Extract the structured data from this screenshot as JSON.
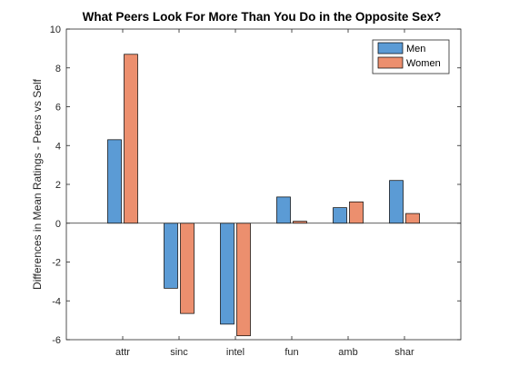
{
  "chart_data": {
    "type": "bar",
    "title": "What Peers Look For More Than You Do in the Opposite Sex?",
    "xlabel": "",
    "ylabel": "Differences in Mean Ratings - Peers vs Self",
    "categories": [
      "attr",
      "sinc",
      "intel",
      "fun",
      "amb",
      "shar"
    ],
    "series": [
      {
        "name": "Men",
        "color": "#5b9bd5",
        "values": [
          4.3,
          -3.35,
          -5.2,
          1.35,
          0.8,
          2.2
        ]
      },
      {
        "name": "Women",
        "color": "#ec8f6e",
        "values": [
          8.7,
          -4.65,
          -5.8,
          0.1,
          1.1,
          0.5
        ]
      }
    ],
    "ylim": [
      -6,
      10
    ],
    "yticks": [
      -6,
      -4,
      -2,
      0,
      2,
      4,
      6,
      8,
      10
    ],
    "grid": false,
    "legend_position": "top-right",
    "zero_line": true
  }
}
